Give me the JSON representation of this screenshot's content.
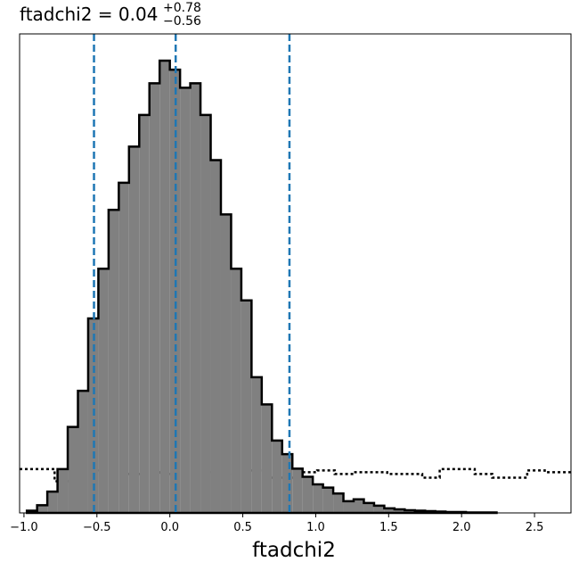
{
  "chart_data": {
    "type": "histogram",
    "title": {
      "name": "ftadchi2",
      "equals": " = ",
      "value": "0.04",
      "upper": "+0.78",
      "lower": "−0.56"
    },
    "xlabel": "ftadchi2",
    "ylabel": "",
    "xlim": [
      -1.03,
      2.75
    ],
    "ylim": [
      0,
      1.0
    ],
    "x_ticks": [
      -1.0,
      -0.5,
      0.0,
      0.5,
      1.0,
      1.5,
      2.0,
      2.5
    ],
    "x_tick_labels": [
      "−1.0",
      "−0.5",
      "0.0",
      "0.5",
      "1.0",
      "1.5",
      "2.0",
      "2.5"
    ],
    "y_ticks_shown": false,
    "grid": false,
    "colors": {
      "histogram_fill": "#808080",
      "histogram_edge": "#000000",
      "quantile_lines": "#1f77b4",
      "prior_line": "#000000"
    },
    "quantile_lines": [
      -0.52,
      0.04,
      0.82
    ],
    "posterior_histogram": {
      "fill": "gray",
      "edge_style": "solid",
      "bin_edges": [
        -0.98,
        -0.91,
        -0.84,
        -0.77,
        -0.7,
        -0.63,
        -0.56,
        -0.49,
        -0.42,
        -0.35,
        -0.28,
        -0.21,
        -0.14,
        -0.07,
        0.0,
        0.07,
        0.14,
        0.21,
        0.28,
        0.35,
        0.42,
        0.49,
        0.56,
        0.63,
        0.7,
        0.77,
        0.84,
        0.91,
        0.98,
        1.05,
        1.12,
        1.19,
        1.26,
        1.33,
        1.4,
        1.47,
        1.54,
        1.61,
        1.68,
        1.75,
        1.82,
        1.89,
        1.96,
        2.03,
        2.1,
        2.17,
        2.24
      ],
      "counts": [
        0.005,
        0.017,
        0.047,
        0.097,
        0.19,
        0.27,
        0.43,
        0.54,
        0.67,
        0.73,
        0.81,
        0.88,
        0.95,
        1.0,
        0.98,
        0.94,
        0.95,
        0.88,
        0.78,
        0.66,
        0.54,
        0.47,
        0.3,
        0.24,
        0.16,
        0.13,
        0.098,
        0.08,
        0.063,
        0.056,
        0.043,
        0.026,
        0.03,
        0.022,
        0.016,
        0.01,
        0.008,
        0.006,
        0.005,
        0.004,
        0.003,
        0.002,
        0.002,
        0.001,
        0.001,
        0.001
      ]
    },
    "prior_histogram": {
      "edge_style": "dotted",
      "bin_edges": [
        -1.03,
        -0.91,
        -0.79,
        -0.67,
        -0.55,
        -0.43,
        -0.31,
        -0.19,
        -0.07,
        0.05,
        0.17,
        0.29,
        0.41,
        0.53,
        0.65,
        0.77,
        0.89,
        1.01,
        1.13,
        1.25,
        1.37,
        1.49,
        1.61,
        1.73,
        1.85,
        1.97,
        2.09,
        2.21,
        2.33,
        2.45,
        2.57,
        2.69,
        2.75
      ],
      "counts": [
        0.097,
        0.097,
        0.07,
        0.09,
        0.094,
        0.094,
        0.086,
        0.094,
        0.086,
        0.09,
        0.09,
        0.086,
        0.09,
        0.094,
        0.078,
        0.078,
        0.09,
        0.094,
        0.086,
        0.09,
        0.09,
        0.086,
        0.086,
        0.078,
        0.097,
        0.097,
        0.086,
        0.078,
        0.078,
        0.094,
        0.09,
        0.09
      ]
    }
  }
}
